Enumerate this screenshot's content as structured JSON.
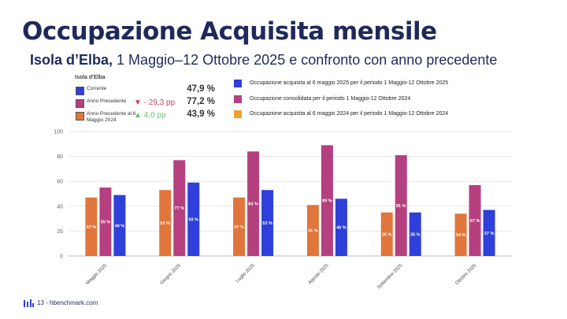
{
  "slide": {
    "title": "Occupazione Acquisita mensile",
    "subtitle_bold": "Isola d’Elba,",
    "subtitle_rest": "1 Maggio–12 Ottobre 2025 e confronto con anno precedente",
    "footer": "13 - hbenchmark.com"
  },
  "summary": {
    "title": "Isola d'Elba",
    "rows": [
      {
        "label": "Corrente",
        "color": "#2f3fd9",
        "delta": "",
        "value": "47,9 %"
      },
      {
        "label": "Anno Precedente",
        "color": "#b5407f",
        "delta": "▼ - 29,3 pp",
        "value": "77,2 %"
      },
      {
        "label": "Anno Precedente al 6 Maggio 2024",
        "color": "#e0763b",
        "delta": "▲ 4,0 pp",
        "value": "43,9 %"
      }
    ]
  },
  "legend": [
    {
      "label": "Occupazione acquisita al 6 maggio 2025 per il periodo 1 Maggio-12 Ottobre 2025",
      "color": "#2f3fd9"
    },
    {
      "label": "Occupazione consolidata per il periodo 1 Maggio-12 Ottobre 2024",
      "color": "#b5407f"
    },
    {
      "label": "Occupazione acquisita al 6 maggio 2024 per il periodo 1 Maggio-12 Ottobre 2024",
      "color": "#f0a030"
    }
  ],
  "chart_data": {
    "type": "bar",
    "categories": [
      "Maggio 2025",
      "Giugno 2025",
      "Luglio 2025",
      "Agosto 2025",
      "Settembre 2025",
      "Ottobre 2025"
    ],
    "series": [
      {
        "name": "Occupazione acquisita al 6 maggio 2024 per il periodo 1 Maggio-12 Ottobre 2024",
        "color": "#e0763b",
        "values": [
          47,
          53,
          47,
          41,
          35,
          34
        ],
        "labels": [
          "47 %",
          "53 %",
          "47 %",
          "41 %",
          "35 %",
          "34 %"
        ]
      },
      {
        "name": "Occupazione consolidata per il periodo 1 Maggio-12 Ottobre 2024",
        "color": "#b5407f",
        "values": [
          55,
          77,
          84,
          89,
          81,
          57
        ],
        "labels": [
          "55 %",
          "77 %",
          "84 %",
          "89 %",
          "81 %",
          "57 %"
        ]
      },
      {
        "name": "Occupazione acquisita al 6 maggio 2025 per il periodo 1 Maggio-12 Ottobre 2025",
        "color": "#2f3fd9",
        "values": [
          49,
          59,
          53,
          46,
          35,
          37
        ],
        "labels": [
          "49 %",
          "59 %",
          "53 %",
          "46 %",
          "35 %",
          "37 %"
        ]
      }
    ],
    "yticks": [
      "0",
      "20",
      "40",
      "60",
      "80",
      "100"
    ],
    "ylim": [
      0,
      100
    ],
    "grid": true
  }
}
